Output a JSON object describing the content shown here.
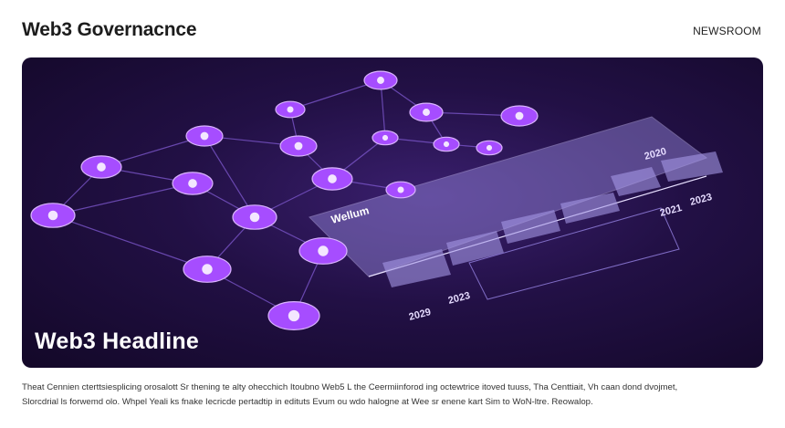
{
  "header": {
    "title": "Web3 Governacnce",
    "nav_label": "NEWSROOM"
  },
  "hero": {
    "headline": "Web3 Headline",
    "panel_label": "Wellum",
    "years": [
      "2020",
      "2023",
      "2021",
      "2029",
      "2023"
    ],
    "colors": {
      "node": "#a64dff",
      "background": "#1b0c38",
      "panel": "#8e7fd6"
    }
  },
  "caption": {
    "lines": [
      "Theat Cennien cterttsiesplicing orosalott Sr thening te alty ohecchich Itoubno Web5 L the Ceermiinforod ing octewtrice itoved tuuss, Tha Centtiait, Vh caan dond dvojmet,",
      "Slorcdrial ls forwemd olo. Whpel Yeali ks fnake Iecricde pertadtip in edituts Evum ou wdo halogne at Wee sr enene kart Sim to WoN-ltre. Reowalop."
    ]
  }
}
